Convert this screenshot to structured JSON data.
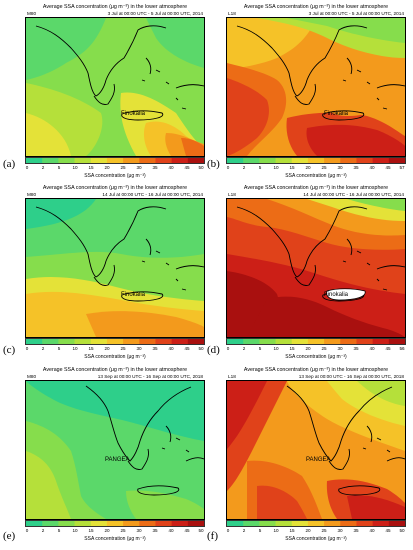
{
  "panels": [
    {
      "id": "a",
      "label": "(a)",
      "title": "Average SSA concentration (μg m⁻³) in the lower atmosphere",
      "model": "M80",
      "period": "3 Jul at 00:00 UTC - 5 Jul at 00:00 UTC, 2014",
      "site": "Finokalia",
      "colorbar_label": "SSA concentration (μg m⁻³)",
      "ticks": [
        "0",
        "2",
        "5",
        "10",
        "15",
        "20",
        "25",
        "30",
        "35",
        "40",
        "45",
        "50"
      ]
    },
    {
      "id": "b",
      "label": "(b)",
      "title": "Average SSA concentration (μg m⁻³) in the lower atmosphere",
      "model": "L18",
      "period": "3 Jul at 00:00 UTC - 5 Jul at 00:00 UTC, 2014",
      "site": "Finokalia",
      "colorbar_label": "SSA concentration (μg m⁻³)",
      "ticks": [
        "0",
        "2",
        "5",
        "10",
        "15",
        "20",
        "25",
        "30",
        "35",
        "40",
        "45",
        "57"
      ]
    },
    {
      "id": "c",
      "label": "(c)",
      "title": "Average SSA concentration (μg m⁻³) in the lower atmosphere",
      "model": "M80",
      "period": "14 Jul at 00:00 UTC - 16 Jul at 00:00 UTC, 2014",
      "site": "Finokalia",
      "colorbar_label": "SSA concentration (μg m⁻³)",
      "ticks": [
        "0",
        "2",
        "5",
        "10",
        "15",
        "20",
        "25",
        "30",
        "35",
        "40",
        "45",
        "50"
      ]
    },
    {
      "id": "d",
      "label": "(d)",
      "title": "Average SSA concentration (μg m⁻³) in the lower atmosphere",
      "model": "L18",
      "period": "14 Jul at 00:00 UTC - 16 Jul at 00:00 UTC, 2014",
      "site": "Finokalia",
      "colorbar_label": "SSA concentration (μg m⁻³)",
      "ticks": [
        "0",
        "2",
        "5",
        "10",
        "15",
        "20",
        "25",
        "30",
        "35",
        "40",
        "45",
        "56"
      ]
    },
    {
      "id": "e",
      "label": "(e)",
      "title": "Average SSA concentration (μg m⁻³) in the lower atmosphere",
      "model": "M80",
      "period": "13 Sep at 00:00 UTC - 16 Sep at 00:00 UTC, 2018",
      "site": "PANGEA",
      "colorbar_label": "SSA concentration (μg m⁻³)",
      "ticks": [
        "0",
        "2",
        "5",
        "10",
        "15",
        "20",
        "25",
        "30",
        "35",
        "40",
        "45",
        "50"
      ]
    },
    {
      "id": "f",
      "label": "(f)",
      "title": "Average SSA concentration (μg m⁻³) in the lower atmosphere",
      "model": "L18",
      "period": "13 Sep at 00:00 UTC - 16 Sep at 00:00 UTC, 2018",
      "site": "PANGEA",
      "colorbar_label": "SSA concentration (μg m⁻³)",
      "ticks": [
        "0",
        "2",
        "5",
        "10",
        "15",
        "20",
        "25",
        "30",
        "35",
        "40",
        "45",
        "50"
      ]
    }
  ],
  "colorscale": [
    "#2ecf8a",
    "#5bd86a",
    "#86dd4c",
    "#b5e03a",
    "#e4e238",
    "#f5c228",
    "#f39a1c",
    "#ec6c16",
    "#e0421a",
    "#cc1f17",
    "#a9100f"
  ]
}
